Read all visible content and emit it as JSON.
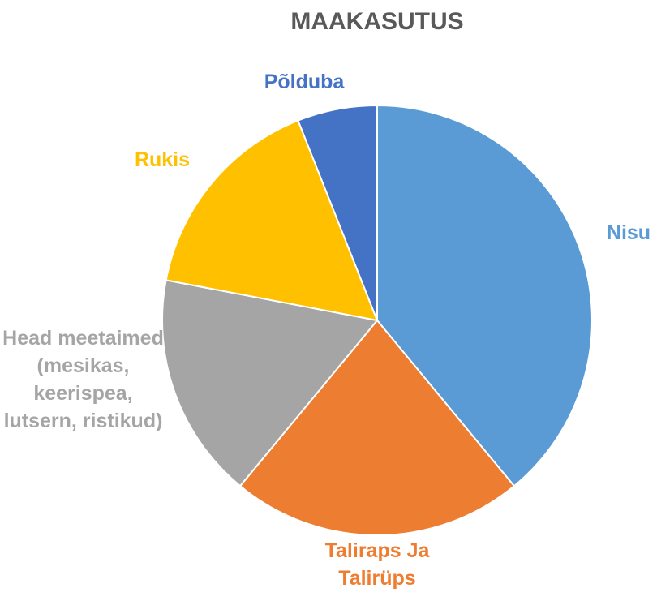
{
  "chart_data": {
    "type": "pie",
    "title": "MAAKASUTUS",
    "categories": [
      "Nisu",
      "Taliraps Ja Talirüps",
      "Head meetaimed (mesikas, keerispea, lutsern, ristikud)",
      "Rukis",
      "Põlduba"
    ],
    "values": [
      39,
      22,
      17,
      16,
      6
    ],
    "colors": [
      "#5b9bd5",
      "#ed7d31",
      "#a5a5a5",
      "#ffc000",
      "#4472c4"
    ]
  }
}
